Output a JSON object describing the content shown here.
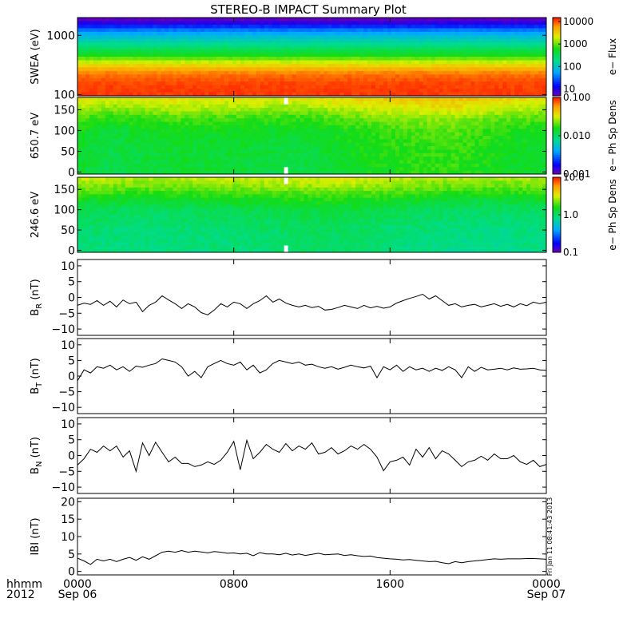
{
  "title": "STEREO-B IMPACT Summary Plot",
  "stamp": "Fri Jan 11 08:41:43 2013",
  "colors": {
    "line": "#000000",
    "background": "#ffffff"
  },
  "x_axis": {
    "corner_labels": [
      "hhmm",
      "2012"
    ],
    "ticks": [
      {
        "value": 0,
        "label": "0000",
        "date": "Sep 06"
      },
      {
        "value": 480,
        "label": "0800",
        "date": ""
      },
      {
        "value": 960,
        "label": "1600",
        "date": ""
      },
      {
        "value": 1440,
        "label": "0000",
        "date": "Sep 07"
      }
    ],
    "range_minutes": [
      0,
      1440
    ]
  },
  "chart_data": [
    {
      "type": "heatmap",
      "id": "swea",
      "ylabel": "SWEA (eV)",
      "yscale": "log",
      "ylim": [
        95,
        2000
      ],
      "yticks": [
        {
          "v": 100,
          "label": "100"
        },
        {
          "v": 1000,
          "label": "1000"
        }
      ],
      "colorbar": {
        "label": "e− Flux",
        "scale": "log",
        "range": [
          5,
          15000
        ],
        "ticks": [
          {
            "v": 10000,
            "label": "10000"
          },
          {
            "v": 1000,
            "label": "1000"
          },
          {
            "v": 100,
            "label": "100"
          },
          {
            "v": 10,
            "label": "10"
          }
        ]
      },
      "energy_profile": [
        [
          95,
          0.97
        ],
        [
          150,
          0.96
        ],
        [
          220,
          0.92
        ],
        [
          320,
          0.78
        ],
        [
          450,
          0.6
        ],
        [
          650,
          0.47
        ],
        [
          900,
          0.37
        ],
        [
          1150,
          0.28
        ],
        [
          1400,
          0.17
        ],
        [
          1650,
          0.06
        ],
        [
          2000,
          0.0
        ]
      ]
    },
    {
      "type": "heatmap",
      "id": "pad650",
      "ylabel": "650.7 eV",
      "ylim": [
        -5,
        180
      ],
      "yticks": [
        {
          "v": 0,
          "label": "0"
        },
        {
          "v": 50,
          "label": "50"
        },
        {
          "v": 100,
          "label": "100"
        },
        {
          "v": 150,
          "label": "150"
        }
      ],
      "colorbar": {
        "label": "e− Ph Sp Dens",
        "scale": "log",
        "range": [
          0.001,
          0.1
        ],
        "ticks": [
          {
            "v": 0.1,
            "label": "0.100"
          },
          {
            "v": 0.01,
            "label": "0.010"
          },
          {
            "v": 0.001,
            "label": "0.001"
          }
        ]
      },
      "pitch_profile": [
        [
          0,
          0.56
        ],
        [
          60,
          0.57
        ],
        [
          100,
          0.59
        ],
        [
          130,
          0.64
        ],
        [
          155,
          0.72
        ],
        [
          180,
          0.78
        ]
      ],
      "time_modulation": [
        [
          0,
          0.0
        ],
        [
          100,
          -0.03
        ],
        [
          300,
          0.0
        ],
        [
          700,
          -0.02
        ],
        [
          900,
          0.03
        ],
        [
          1150,
          0.06
        ],
        [
          1300,
          0.02
        ],
        [
          1440,
          0.0
        ]
      ],
      "gap_minutes": [
        [
          640,
          650
        ]
      ]
    },
    {
      "type": "heatmap",
      "id": "pad246",
      "ylabel": "246.6 eV",
      "ylim": [
        -5,
        180
      ],
      "yticks": [
        {
          "v": 0,
          "label": "0"
        },
        {
          "v": 50,
          "label": "50"
        },
        {
          "v": 100,
          "label": "100"
        },
        {
          "v": 150,
          "label": "150"
        }
      ],
      "colorbar": {
        "label": "e− Ph Sp Dens",
        "scale": "log",
        "range": [
          0.1,
          10
        ],
        "ticks": [
          {
            "v": 10,
            "label": "10.0"
          },
          {
            "v": 1,
            "label": "1.0"
          },
          {
            "v": 0.1,
            "label": "0.1"
          }
        ]
      },
      "pitch_profile": [
        [
          0,
          0.48
        ],
        [
          50,
          0.49
        ],
        [
          100,
          0.53
        ],
        [
          130,
          0.6
        ],
        [
          155,
          0.68
        ],
        [
          180,
          0.74
        ]
      ],
      "time_modulation": [
        [
          0,
          0.0
        ],
        [
          200,
          -0.02
        ],
        [
          500,
          0.0
        ],
        [
          800,
          0.02
        ],
        [
          1100,
          -0.02
        ],
        [
          1300,
          -0.03
        ],
        [
          1440,
          -0.02
        ]
      ],
      "gap_minutes": [
        [
          640,
          650
        ]
      ]
    },
    {
      "type": "line",
      "id": "br",
      "ylabel": "B",
      "ylabel_sub": "R",
      "ylabel_unit": "(nT)",
      "ylim": [
        -12,
        12
      ],
      "yticks": [
        {
          "v": -10,
          "label": "−10"
        },
        {
          "v": -5,
          "label": "−5"
        },
        {
          "v": 0,
          "label": "0"
        },
        {
          "v": 5,
          "label": "5"
        },
        {
          "v": 10,
          "label": "10"
        }
      ],
      "x": [
        0,
        20,
        40,
        60,
        80,
        100,
        120,
        140,
        160,
        180,
        200,
        220,
        240,
        260,
        280,
        300,
        320,
        340,
        360,
        380,
        400,
        420,
        440,
        460,
        480,
        500,
        520,
        540,
        560,
        580,
        600,
        620,
        640,
        660,
        680,
        700,
        720,
        740,
        760,
        780,
        800,
        820,
        840,
        860,
        880,
        900,
        920,
        940,
        960,
        980,
        1000,
        1020,
        1040,
        1060,
        1080,
        1100,
        1120,
        1140,
        1160,
        1180,
        1200,
        1220,
        1240,
        1260,
        1280,
        1300,
        1320,
        1340,
        1360,
        1380,
        1400,
        1420,
        1440
      ],
      "y": [
        -2.5,
        -1.8,
        -2.2,
        -1,
        -2.5,
        -1.2,
        -3,
        -0.8,
        -2,
        -1.5,
        -4.5,
        -2.5,
        -1.5,
        0.5,
        -0.8,
        -2,
        -3.5,
        -2,
        -3,
        -4.8,
        -5.5,
        -4,
        -2,
        -3,
        -1.5,
        -2,
        -3.5,
        -2,
        -1,
        0.5,
        -1.5,
        -0.5,
        -1.8,
        -2.5,
        -3,
        -2.5,
        -3.2,
        -2.8,
        -4,
        -3.8,
        -3.2,
        -2.5,
        -3,
        -3.5,
        -2.5,
        -3.3,
        -2.8,
        -3.4,
        -3,
        -1.8,
        -1,
        -0.3,
        0.3,
        1,
        -0.5,
        0.5,
        -1,
        -2.5,
        -2,
        -3,
        -2.5,
        -2.2,
        -3,
        -2.5,
        -2,
        -2.8,
        -2.2,
        -3,
        -2,
        -2.6,
        -1.5,
        -2,
        -1.5
      ],
      "series": [
        {
          "name": ""
        }
      ]
    },
    {
      "type": "line",
      "id": "bt",
      "ylabel": "B",
      "ylabel_sub": "T",
      "ylabel_unit": "(nT)",
      "ylim": [
        -12,
        12
      ],
      "yticks": [
        {
          "v": -10,
          "label": "−10"
        },
        {
          "v": -5,
          "label": "−5"
        },
        {
          "v": 0,
          "label": "0"
        },
        {
          "v": 5,
          "label": "5"
        },
        {
          "v": 10,
          "label": "10"
        }
      ],
      "x": [
        0,
        20,
        40,
        60,
        80,
        100,
        120,
        140,
        160,
        180,
        200,
        220,
        240,
        260,
        280,
        300,
        320,
        340,
        360,
        380,
        400,
        420,
        440,
        460,
        480,
        500,
        520,
        540,
        560,
        580,
        600,
        620,
        640,
        660,
        680,
        700,
        720,
        740,
        760,
        780,
        800,
        820,
        840,
        860,
        880,
        900,
        920,
        940,
        960,
        980,
        1000,
        1020,
        1040,
        1060,
        1080,
        1100,
        1120,
        1140,
        1160,
        1180,
        1200,
        1220,
        1240,
        1260,
        1280,
        1300,
        1320,
        1340,
        1360,
        1380,
        1400,
        1420,
        1440
      ],
      "y": [
        -1.5,
        2,
        1,
        3,
        2.5,
        3.5,
        2,
        3,
        1.5,
        3.2,
        2.8,
        3.5,
        4,
        5.5,
        5,
        4.5,
        3,
        0,
        1.5,
        -0.5,
        3,
        4,
        5,
        4,
        3.5,
        4.5,
        2,
        3.5,
        1,
        2,
        4,
        5,
        4.5,
        4,
        4.5,
        3.5,
        3.8,
        3,
        2.5,
        3,
        2.2,
        2.8,
        3.5,
        3,
        2.6,
        3.2,
        -0.5,
        3,
        2,
        3.5,
        1.5,
        3,
        2,
        2.5,
        1.5,
        2.5,
        1.8,
        3,
        2,
        -0.5,
        3,
        1.5,
        2.8,
        2,
        2.2,
        2.5,
        2,
        2.6,
        2.2,
        2.3,
        2.5,
        2,
        1.8
      ],
      "series": [
        {
          "name": ""
        }
      ]
    },
    {
      "type": "line",
      "id": "bn",
      "ylabel": "B",
      "ylabel_sub": "N",
      "ylabel_unit": "(nT)",
      "ylim": [
        -12,
        12
      ],
      "yticks": [
        {
          "v": -10,
          "label": "−10"
        },
        {
          "v": -5,
          "label": "−5"
        },
        {
          "v": 0,
          "label": "0"
        },
        {
          "v": 5,
          "label": "5"
        },
        {
          "v": 10,
          "label": "10"
        }
      ],
      "x": [
        0,
        20,
        40,
        60,
        80,
        100,
        120,
        140,
        160,
        180,
        200,
        220,
        240,
        260,
        280,
        300,
        320,
        340,
        360,
        380,
        400,
        420,
        440,
        460,
        480,
        500,
        520,
        540,
        560,
        580,
        600,
        620,
        640,
        660,
        680,
        700,
        720,
        740,
        760,
        780,
        800,
        820,
        840,
        860,
        880,
        900,
        920,
        940,
        960,
        980,
        1000,
        1020,
        1040,
        1060,
        1080,
        1100,
        1120,
        1140,
        1160,
        1180,
        1200,
        1220,
        1240,
        1260,
        1280,
        1300,
        1320,
        1340,
        1360,
        1380,
        1400,
        1420,
        1440
      ],
      "y": [
        -3,
        -1,
        2,
        1,
        3,
        1.5,
        3,
        -0.5,
        1.5,
        -5,
        4,
        0,
        4.2,
        1,
        -2,
        -0.5,
        -2.5,
        -2.5,
        -3.5,
        -3,
        -2,
        -2.8,
        -1.5,
        1,
        4.5,
        -4.5,
        4.8,
        -1,
        1,
        3.5,
        2,
        1,
        3.8,
        1.5,
        3,
        2,
        4,
        0.5,
        1,
        2.5,
        0.5,
        1.5,
        3,
        2,
        3.5,
        2,
        -0.5,
        -4.8,
        -2,
        -1.5,
        -0.5,
        -3,
        2,
        -0.5,
        2.5,
        -1,
        1.5,
        0.5,
        -1.5,
        -3.5,
        -2,
        -1.5,
        -0.2,
        -1.5,
        0.5,
        -1,
        -1,
        0,
        -2,
        -2.8,
        -1.5,
        -3.5,
        -2.8
      ],
      "series": [
        {
          "name": ""
        }
      ]
    },
    {
      "type": "line",
      "id": "btot",
      "ylabel": "IBI",
      "ylabel_sub": "",
      "ylabel_unit": "(nT)",
      "ylim": [
        -1,
        21
      ],
      "yticks": [
        {
          "v": 0,
          "label": "0"
        },
        {
          "v": 5,
          "label": "5"
        },
        {
          "v": 10,
          "label": "10"
        },
        {
          "v": 15,
          "label": "15"
        },
        {
          "v": 20,
          "label": "20"
        }
      ],
      "x": [
        0,
        20,
        40,
        60,
        80,
        100,
        120,
        140,
        160,
        180,
        200,
        220,
        240,
        260,
        280,
        300,
        320,
        340,
        360,
        380,
        400,
        420,
        440,
        460,
        480,
        500,
        520,
        540,
        560,
        580,
        600,
        620,
        640,
        660,
        680,
        700,
        720,
        740,
        760,
        780,
        800,
        820,
        840,
        860,
        880,
        900,
        920,
        940,
        960,
        980,
        1000,
        1020,
        1040,
        1060,
        1080,
        1100,
        1120,
        1140,
        1160,
        1180,
        1200,
        1220,
        1240,
        1260,
        1280,
        1300,
        1320,
        1340,
        1360,
        1380,
        1400,
        1420,
        1440
      ],
      "y": [
        3.8,
        3,
        2,
        3.5,
        3,
        3.5,
        2.8,
        3.5,
        4,
        3.2,
        4.2,
        3.5,
        4.5,
        5.5,
        5.8,
        5.5,
        6,
        5.5,
        5.8,
        5.6,
        5.3,
        5.7,
        5.5,
        5.2,
        5.3,
        5,
        5.2,
        4.5,
        5.4,
        5,
        5,
        4.8,
        5.2,
        4.7,
        5,
        4.6,
        4.9,
        5.2,
        4.8,
        4.9,
        5,
        4.6,
        4.8,
        4.5,
        4.3,
        4.4,
        4,
        3.8,
        3.6,
        3.5,
        3.3,
        3.4,
        3.2,
        3,
        2.8,
        2.9,
        2.5,
        2.2,
        2.8,
        2.5,
        2.8,
        3,
        3.2,
        3.4,
        3.6,
        3.5,
        3.6,
        3.6,
        3.6,
        3.7,
        3.7,
        3.6,
        3.5
      ],
      "series": [
        {
          "name": ""
        }
      ]
    }
  ]
}
